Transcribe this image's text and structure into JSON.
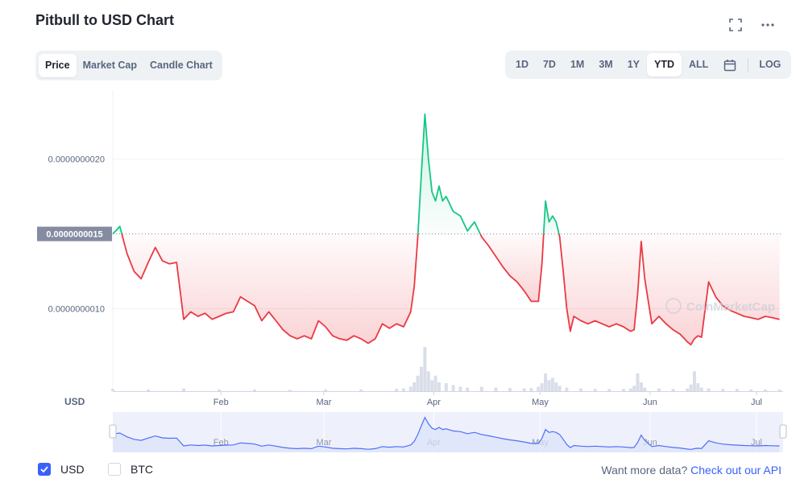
{
  "header": {
    "title": "Pitbull to USD Chart"
  },
  "icons": {
    "fullscreen": "fullscreen-icon",
    "more": "more-dots-icon",
    "calendar": "calendar-icon",
    "check": "check-icon"
  },
  "chart_tabs": [
    {
      "label": "Price",
      "active": true
    },
    {
      "label": "Market Cap",
      "active": false
    },
    {
      "label": "Candle Chart",
      "active": false
    }
  ],
  "range_tabs": [
    {
      "label": "1D",
      "active": false
    },
    {
      "label": "7D",
      "active": false
    },
    {
      "label": "1M",
      "active": false
    },
    {
      "label": "3M",
      "active": false
    },
    {
      "label": "1Y",
      "active": false
    },
    {
      "label": "YTD",
      "active": true
    },
    {
      "label": "ALL",
      "active": false
    }
  ],
  "log_label": "LOG",
  "currency_axis_label": "USD",
  "legend": {
    "usd": {
      "label": "USD",
      "checked": true
    },
    "btc": {
      "label": "BTC",
      "checked": false
    }
  },
  "footer": {
    "prefix": "Want more data?",
    "link": "Check out our API"
  },
  "watermark": "CoinMarketCap",
  "colors": {
    "up": "#16c784",
    "down": "#ea3943",
    "accent": "#3861fb",
    "baseline_label_bg": "#858ca2",
    "navigator_line": "#4f6ef7"
  },
  "chart_data": {
    "type": "line",
    "baseline": 1.5e-09,
    "baseline_label": "0.0000000015",
    "y_ticks": [
      {
        "value": 2e-09,
        "label": "0.0000000020"
      },
      {
        "value": 1e-09,
        "label": "0.0000000010"
      }
    ],
    "ylim": [
      4.5e-10,
      2.46e-09
    ],
    "x_ticks": [
      {
        "value": 30.5,
        "label": "Feb"
      },
      {
        "value": 59.5,
        "label": "Mar"
      },
      {
        "value": 90.5,
        "label": "Apr"
      },
      {
        "value": 120.5,
        "label": "May"
      },
      {
        "value": 151.5,
        "label": "Jun"
      },
      {
        "value": 181.5,
        "label": "Jul"
      }
    ],
    "xlim": [
      0,
      189
    ],
    "series": [
      {
        "x": [
          0,
          2,
          4,
          6,
          8,
          10,
          12,
          14,
          16,
          18,
          20,
          22,
          24,
          26,
          28,
          30,
          32,
          34,
          36,
          38,
          40,
          42,
          44,
          46,
          48,
          50,
          52,
          54,
          56,
          58,
          60,
          62,
          64,
          66,
          68,
          70,
          72,
          74,
          76,
          78,
          80,
          82,
          84,
          85,
          86,
          87,
          88,
          89,
          90,
          91,
          92,
          93,
          94,
          96,
          98,
          100,
          102,
          104,
          106,
          108,
          110,
          112,
          114,
          116,
          118,
          120,
          121,
          122,
          123,
          124,
          125,
          126,
          127,
          128,
          129,
          130,
          132,
          134,
          136,
          138,
          140,
          142,
          144,
          146,
          147,
          148,
          149,
          150,
          152,
          154,
          156,
          158,
          160,
          162,
          163,
          164,
          165,
          166,
          168,
          170,
          172,
          174,
          176,
          178,
          180,
          182,
          184,
          186,
          188
        ],
        "values": [
          1.5e-09,
          1.55e-09,
          1.37e-09,
          1.25e-09,
          1.2e-09,
          1.31e-09,
          1.41e-09,
          1.32e-09,
          1.3e-09,
          1.31e-09,
          9.3e-10,
          9.8e-10,
          9.5e-10,
          9.7e-10,
          9.3e-10,
          9.5e-10,
          9.7e-10,
          9.8e-10,
          1.08e-09,
          1.05e-09,
          1.02e-09,
          9.2e-10,
          9.8e-10,
          9.2e-10,
          8.6e-10,
          8.2e-10,
          8e-10,
          8.2e-10,
          8e-10,
          9.2e-10,
          8.8e-10,
          8.2e-10,
          8e-10,
          7.9e-10,
          8.2e-10,
          8e-10,
          7.7e-10,
          8e-10,
          9e-10,
          8.7e-10,
          9e-10,
          8.8e-10,
          9.8e-10,
          1.15e-09,
          1.48e-09,
          1.9e-09,
          2.3e-09,
          2e-09,
          1.78e-09,
          1.72e-09,
          1.82e-09,
          1.72e-09,
          1.75e-09,
          1.65e-09,
          1.62e-09,
          1.52e-09,
          1.58e-09,
          1.48e-09,
          1.42e-09,
          1.35e-09,
          1.28e-09,
          1.22e-09,
          1.18e-09,
          1.12e-09,
          1.05e-09,
          1.05e-09,
          1.3e-09,
          1.72e-09,
          1.58e-09,
          1.62e-09,
          1.58e-09,
          1.48e-09,
          1.25e-09,
          1e-09,
          8.5e-10,
          9.5e-10,
          9.2e-10,
          9e-10,
          9.2e-10,
          9e-10,
          8.8e-10,
          9e-10,
          8.8e-10,
          8.5e-10,
          8.6e-10,
          1.1e-09,
          1.45e-09,
          1.2e-09,
          9e-10,
          9.5e-10,
          9e-10,
          8.6e-10,
          8.3e-10,
          7.8e-10,
          7.6e-10,
          8e-10,
          8.2e-10,
          8.1e-10,
          1.18e-09,
          1.08e-09,
          1.02e-09,
          9.9e-10,
          9.7e-10,
          9.5e-10,
          9.4e-10,
          9.3e-10,
          9.5e-10,
          9.4e-10,
          9.3e-10
        ]
      }
    ],
    "volume": {
      "x": [
        0,
        10,
        20,
        30,
        40,
        50,
        60,
        70,
        80,
        82,
        84,
        85,
        86,
        87,
        88,
        89,
        90,
        91,
        92,
        94,
        96,
        98,
        100,
        104,
        108,
        112,
        116,
        118,
        120,
        121,
        122,
        123,
        124,
        125,
        126,
        128,
        132,
        136,
        140,
        144,
        146,
        147,
        148,
        149,
        150,
        154,
        158,
        162,
        163,
        164,
        165,
        166,
        168,
        172,
        176,
        180,
        184,
        188
      ],
      "values": [
        0.05,
        0.04,
        0.06,
        0.04,
        0.04,
        0.03,
        0.04,
        0.04,
        0.05,
        0.06,
        0.1,
        0.2,
        0.35,
        0.55,
        1.0,
        0.45,
        0.25,
        0.35,
        0.2,
        0.18,
        0.14,
        0.1,
        0.08,
        0.1,
        0.08,
        0.07,
        0.06,
        0.07,
        0.1,
        0.18,
        0.4,
        0.25,
        0.3,
        0.2,
        0.12,
        0.08,
        0.06,
        0.05,
        0.05,
        0.05,
        0.06,
        0.12,
        0.4,
        0.2,
        0.08,
        0.06,
        0.05,
        0.06,
        0.15,
        0.45,
        0.18,
        0.08,
        0.06,
        0.05,
        0.05,
        0.04,
        0.04,
        0.04
      ]
    }
  }
}
